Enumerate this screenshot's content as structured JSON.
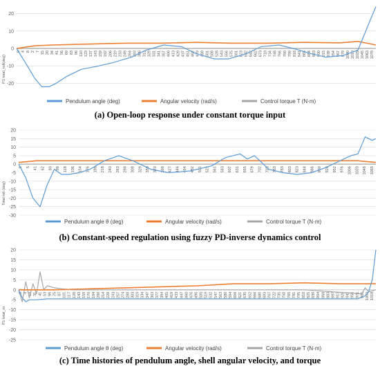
{
  "chart_data": [
    {
      "type": "line",
      "caption": "(a) Open-loop response under constant torque input",
      "ylabel": "P1 total_roll(deg)",
      "ylim": [
        -25,
        25
      ],
      "yticks": [
        20,
        10,
        0,
        -10,
        -20
      ],
      "x_tick_labels": [
        "0",
        "4",
        "8",
        "2",
        "7",
        "15",
        "20",
        "34",
        "41",
        "56",
        "69",
        "83",
        "96",
        "110",
        "123",
        "137",
        "143",
        "159",
        "192",
        "206",
        "219",
        "233",
        "249",
        "264",
        "283",
        "306",
        "312",
        "329",
        "331",
        "341",
        "357",
        "400",
        "413",
        "429",
        "437",
        "451",
        "462",
        "479",
        "489",
        "501",
        "508",
        "528",
        "543",
        "556",
        "575",
        "601",
        "623",
        "632",
        "642",
        "662",
        "673",
        "718",
        "734",
        "748",
        "766",
        "790",
        "799",
        "818",
        "841",
        "865",
        "884",
        "893",
        "900",
        "915",
        "939",
        "954",
        "967",
        "979",
        "1000",
        "1010",
        "1029",
        "1045",
        "1063",
        "1078"
      ],
      "legend": [
        "Pendulum angle (deg)",
        "Angular velocity (rad/s)",
        "Control torque T (N·m)"
      ],
      "colors": [
        "#5b9bd5",
        "#ed7d31",
        "#a5a5a5"
      ],
      "series": [
        {
          "name": "Pendulum angle (deg)",
          "x": [
            0,
            3,
            5,
            7,
            9,
            11,
            14,
            18,
            23,
            27,
            32,
            36,
            41,
            46,
            50,
            55,
            59,
            64,
            68,
            73,
            77,
            82,
            86,
            91,
            95,
            100
          ],
          "y": [
            0,
            -10,
            -17,
            -22,
            -22,
            -20,
            -16,
            -12,
            -10,
            -8,
            -5,
            -1,
            2,
            1,
            -3,
            -6,
            -6,
            -3,
            1,
            2,
            0,
            -3,
            -5,
            -4,
            -1,
            24
          ]
        },
        {
          "name": "Angular velocity (rad/s)",
          "x": [
            0,
            5,
            10,
            20,
            30,
            40,
            50,
            60,
            70,
            80,
            90,
            95,
            100
          ],
          "y": [
            0,
            1.5,
            2,
            2.5,
            3,
            3,
            3.5,
            3,
            3,
            3.5,
            3.2,
            4,
            2
          ]
        },
        {
          "name": "Control torque T (N·m)",
          "x": [
            0,
            100
          ],
          "y": [
            0,
            0
          ]
        }
      ]
    },
    {
      "type": "line",
      "caption": "(b) Constant-speed regulation using fuzzy PD-inverse dynamics control",
      "ylabel": "Total roll (deg)",
      "ylim": [
        -30,
        20
      ],
      "yticks": [
        20,
        15,
        10,
        5,
        0,
        -5,
        -10,
        -15,
        -20,
        -25,
        -30
      ],
      "x_tick_labels": [
        "0",
        "5",
        "41",
        "62",
        "80",
        "98",
        "118",
        "136",
        "154",
        "176",
        "196",
        "218",
        "240",
        "263",
        "288",
        "308",
        "329",
        "350",
        "370",
        "398",
        "427",
        "446",
        "464",
        "482",
        "501",
        "523",
        "561",
        "583",
        "607",
        "631",
        "655",
        "679",
        "702",
        "725",
        "763",
        "783",
        "803",
        "823",
        "844",
        "866",
        "900",
        "928",
        "952",
        "976",
        "1006",
        "1020",
        "1048",
        "1068"
      ],
      "legend": [
        "Pendulum angle θ (deg)",
        "Angular velocity (rad/s)",
        "Control torque T (N·m)"
      ],
      "colors": [
        "#5b9bd5",
        "#ed7d31",
        "#a5a5a5"
      ],
      "series": [
        {
          "name": "Pendulum angle θ (deg)",
          "x": [
            0,
            2,
            4,
            6,
            8,
            10,
            12,
            14,
            17,
            20,
            24,
            28,
            32,
            37,
            42,
            48,
            54,
            58,
            62,
            64,
            66,
            68,
            70,
            74,
            78,
            82,
            86,
            90,
            93,
            95,
            97,
            99,
            100
          ],
          "y": [
            0,
            -8,
            -20,
            -25,
            -12,
            -3,
            -6,
            -6,
            -5,
            -3,
            2,
            5,
            2,
            -3,
            -5,
            -4,
            -1,
            4,
            6,
            3,
            5,
            1,
            -3,
            -5,
            -6,
            -5,
            -2,
            2,
            5,
            6,
            16,
            14,
            15
          ]
        },
        {
          "name": "Angular velocity (rad/s)",
          "x": [
            0,
            5,
            10,
            20,
            30,
            40,
            50,
            60,
            70,
            80,
            90,
            95,
            100
          ],
          "y": [
            1,
            2,
            2,
            2,
            2,
            2,
            2,
            2,
            2,
            2,
            2,
            2,
            1
          ]
        },
        {
          "name": "Control torque T (N·m)",
          "x": [
            0,
            100
          ],
          "y": [
            0,
            0
          ]
        }
      ]
    },
    {
      "type": "line",
      "caption": "(c) Time histories of pendulum angle, shell angular velocity, and torque",
      "ylabel": "P1 total_ro",
      "ylim": [
        -25,
        20
      ],
      "yticks": [
        20,
        15,
        10,
        5,
        0,
        -5,
        -10,
        -15,
        -20,
        -25
      ],
      "x_tick_labels": [
        "0",
        "8",
        "18",
        "31",
        "41",
        "53",
        "66",
        "75",
        "87",
        "101",
        "117",
        "128",
        "143",
        "159",
        "170",
        "184",
        "200",
        "214",
        "228",
        "243",
        "257",
        "274",
        "288",
        "303",
        "319",
        "334",
        "347",
        "363",
        "377",
        "394",
        "405",
        "419",
        "433",
        "447",
        "460",
        "476",
        "490",
        "505",
        "519",
        "532",
        "547",
        "563",
        "580",
        "594",
        "608",
        "621",
        "635",
        "652",
        "666",
        "680",
        "693",
        "707",
        "722",
        "735",
        "750",
        "765",
        "781",
        "795",
        "810",
        "825",
        "839",
        "854",
        "868",
        "883",
        "897",
        "913",
        "928",
        "942",
        "956",
        "971",
        "986",
        "1000",
        "1018"
      ],
      "legend": [
        "Pendulum angle θ (deg)",
        "Angular velocity (rad/s)",
        "Control torque T (N·m)"
      ],
      "colors": [
        "#5b9bd5",
        "#ed7d31",
        "#a5a5a5"
      ],
      "series": [
        {
          "name": "Pendulum angle θ (deg)",
          "x": [
            0,
            1,
            2,
            3,
            5,
            8,
            12,
            20,
            30,
            40,
            50,
            60,
            70,
            80,
            90,
            95,
            97,
            98,
            99,
            100
          ],
          "y": [
            0,
            -4,
            -6,
            -5,
            -5,
            -4.5,
            -4.5,
            -4.5,
            -4.5,
            -4.5,
            -4.5,
            -4.5,
            -4.5,
            -4.5,
            -4.5,
            -4.5,
            -3,
            -1,
            5,
            20
          ]
        },
        {
          "name": "Angular velocity (rad/s)",
          "x": [
            0,
            5,
            10,
            20,
            30,
            40,
            50,
            60,
            70,
            80,
            90,
            95,
            100
          ],
          "y": [
            0,
            0,
            0,
            0.5,
            1,
            1.5,
            2,
            3,
            3,
            3.5,
            3,
            3,
            3
          ]
        },
        {
          "name": "Control torque T (N·m)",
          "x": [
            0,
            1,
            2,
            3,
            4,
            5,
            6,
            7,
            8,
            10,
            12,
            15,
            20,
            40,
            60,
            80,
            96,
            97,
            98,
            100
          ],
          "y": [
            0,
            -6,
            4,
            -4,
            3,
            -2,
            9,
            0,
            2,
            1,
            0.5,
            0,
            0,
            0,
            0,
            0,
            -2,
            1,
            -1,
            0
          ]
        }
      ]
    }
  ]
}
